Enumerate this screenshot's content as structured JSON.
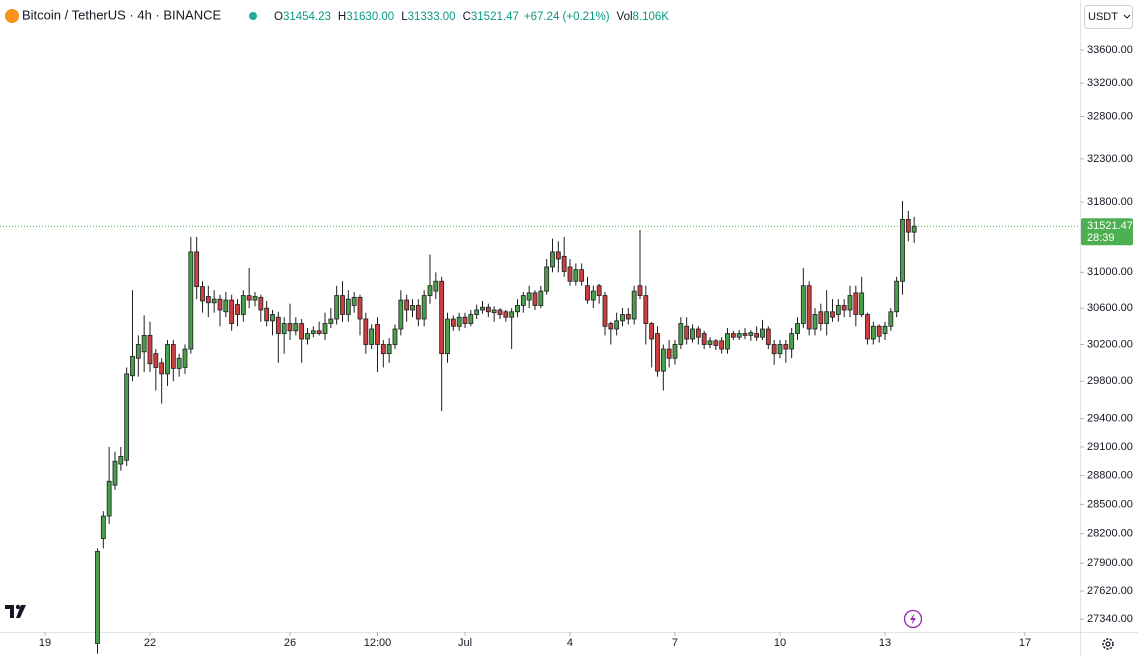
{
  "header": {
    "symbol": "Bitcoin / TetherUS · 4h · BINANCE",
    "values": [
      {
        "key": "O",
        "value": "31454.23"
      },
      {
        "key": "H",
        "value": "31630.00"
      },
      {
        "key": "L",
        "value": "31333.00"
      },
      {
        "key": "C",
        "value": "31521.47"
      },
      {
        "value": "+67.24 (+0.21%)"
      },
      {
        "key": "Vol",
        "value": "8.106K"
      }
    ]
  },
  "currency": "USDT",
  "countdown": "28:39",
  "chart_data": {
    "type": "candlestick",
    "log_scale": true,
    "grid": false,
    "up_color": "#4a9f4a",
    "down_color": "#cc3f3f",
    "wick_color": "#1e1e1e",
    "last_price_color": "#4caf50",
    "xlim": [
      "06-17 17:09",
      "07-18 13:43"
    ],
    "xticks": [
      {
        "value": "06-19 00:00",
        "label": "19"
      },
      {
        "value": "06-22 00:00",
        "label": "22"
      },
      {
        "value": "06-26 00:00",
        "label": "26"
      },
      {
        "value": "06-28 12:00",
        "label": "12:00"
      },
      {
        "value": "07-01 00:00",
        "label": "Jul"
      },
      {
        "value": "07-04 00:00",
        "label": "4"
      },
      {
        "value": "07-07 00:00",
        "label": "7"
      },
      {
        "value": "07-10 00:00",
        "label": "10"
      },
      {
        "value": "07-13 00:00",
        "label": "13"
      },
      {
        "value": "07-17 00:00",
        "label": "17"
      }
    ],
    "ylim": [
      27213,
      34214
    ],
    "yticks": [
      {
        "value": 33600,
        "label": "33600.00"
      },
      {
        "value": 33200,
        "label": "33200.00"
      },
      {
        "value": 32800,
        "label": "32800.00"
      },
      {
        "value": 32300,
        "label": "32300.00"
      },
      {
        "value": 31800,
        "label": "31800.00"
      },
      {
        "value": 31000,
        "label": "31000.00"
      },
      {
        "value": 30600,
        "label": "30600.00"
      },
      {
        "value": 30200,
        "label": "30200.00"
      },
      {
        "value": 29800,
        "label": "29800.00"
      },
      {
        "value": 29400,
        "label": "29400.00"
      },
      {
        "value": 29100,
        "label": "29100.00"
      },
      {
        "value": 28800,
        "label": "28800.00"
      },
      {
        "value": 28500,
        "label": "28500.00"
      },
      {
        "value": 28200,
        "label": "28200.00"
      },
      {
        "value": 27900,
        "label": "27900.00"
      },
      {
        "value": 27620,
        "label": "27620.00"
      },
      {
        "value": 27340,
        "label": "27340.00"
      }
    ],
    "candles": [
      [
        "06-20 12:00",
        27100,
        28050,
        27000,
        28020
      ],
      [
        "06-20 16:00",
        28150,
        28430,
        28050,
        28380
      ],
      [
        "06-20 20:00",
        28380,
        29100,
        28300,
        28740
      ],
      [
        "06-21 00:00",
        28700,
        29050,
        28650,
        28950
      ],
      [
        "06-21 04:00",
        28920,
        29100,
        28850,
        29000
      ],
      [
        "06-21 08:00",
        28960,
        29950,
        28900,
        29880
      ],
      [
        "06-21 12:00",
        29860,
        30800,
        29800,
        30070
      ],
      [
        "06-21 16:00",
        30050,
        30300,
        29850,
        30200
      ],
      [
        "06-21 20:00",
        30120,
        30520,
        29900,
        30300
      ],
      [
        "06-22 00:00",
        30300,
        30450,
        29900,
        29990
      ],
      [
        "06-22 04:00",
        30100,
        30150,
        29700,
        29950
      ],
      [
        "06-22 08:00",
        30000,
        30050,
        29560,
        29880
      ],
      [
        "06-22 12:00",
        29880,
        30250,
        29750,
        30200
      ],
      [
        "06-22 16:00",
        30200,
        30250,
        29800,
        29940
      ],
      [
        "06-22 20:00",
        29940,
        30100,
        29850,
        30050
      ],
      [
        "06-23 00:00",
        29950,
        30200,
        29880,
        30150
      ],
      [
        "06-23 04:00",
        30150,
        31400,
        30100,
        31230
      ],
      [
        "06-23 08:00",
        31230,
        31400,
        30700,
        30840
      ],
      [
        "06-23 12:00",
        30840,
        30900,
        30550,
        30680
      ],
      [
        "06-23 16:00",
        30730,
        30850,
        30500,
        30660
      ],
      [
        "06-23 20:00",
        30660,
        30800,
        30550,
        30700
      ],
      [
        "06-24 00:00",
        30700,
        30750,
        30400,
        30580
      ],
      [
        "06-24 04:00",
        30560,
        30780,
        30500,
        30690
      ],
      [
        "06-24 08:00",
        30690,
        30750,
        30350,
        30430
      ],
      [
        "06-24 12:00",
        30640,
        30700,
        30400,
        30530
      ],
      [
        "06-24 16:00",
        30530,
        30800,
        30450,
        30740
      ],
      [
        "06-24 20:00",
        30740,
        31050,
        30600,
        30690
      ],
      [
        "06-25 00:00",
        30690,
        30780,
        30620,
        30730
      ],
      [
        "06-25 04:00",
        30720,
        30750,
        30450,
        30580
      ],
      [
        "06-25 08:00",
        30600,
        30680,
        30400,
        30460
      ],
      [
        "06-25 12:00",
        30460,
        30580,
        30300,
        30530
      ],
      [
        "06-25 16:00",
        30500,
        30560,
        30000,
        30320
      ],
      [
        "06-25 20:00",
        30320,
        30500,
        30100,
        30430
      ],
      [
        "06-26 00:00",
        30430,
        30650,
        30250,
        30350
      ],
      [
        "06-26 04:00",
        30350,
        30500,
        30300,
        30430
      ],
      [
        "06-26 08:00",
        30430,
        30480,
        30000,
        30260
      ],
      [
        "06-26 12:00",
        30260,
        30380,
        30200,
        30320
      ],
      [
        "06-26 16:00",
        30320,
        30400,
        30280,
        30350
      ],
      [
        "06-26 20:00",
        30350,
        30450,
        30300,
        30320
      ],
      [
        "06-27 00:00",
        30320,
        30550,
        30250,
        30430
      ],
      [
        "06-27 04:00",
        30430,
        30600,
        30380,
        30480
      ],
      [
        "06-27 08:00",
        30480,
        30850,
        30420,
        30740
      ],
      [
        "06-27 12:00",
        30740,
        30900,
        30450,
        30530
      ],
      [
        "06-27 16:00",
        30530,
        30800,
        30450,
        30700
      ],
      [
        "06-27 20:00",
        30630,
        30780,
        30550,
        30720
      ],
      [
        "06-28 00:00",
        30720,
        30750,
        30300,
        30480
      ],
      [
        "06-28 04:00",
        30480,
        30550,
        30100,
        30200
      ],
      [
        "06-28 08:00",
        30200,
        30420,
        30150,
        30370
      ],
      [
        "06-28 12:00",
        30420,
        30500,
        29900,
        30200
      ],
      [
        "06-28 16:00",
        30200,
        30250,
        29950,
        30100
      ],
      [
        "06-28 20:00",
        30100,
        30270,
        30000,
        30200
      ],
      [
        "06-29 00:00",
        30200,
        30420,
        30150,
        30370
      ],
      [
        "06-29 04:00",
        30370,
        30800,
        30300,
        30690
      ],
      [
        "06-29 08:00",
        30690,
        30750,
        30450,
        30580
      ],
      [
        "06-29 12:00",
        30580,
        30700,
        30500,
        30630
      ],
      [
        "06-29 16:00",
        30630,
        30700,
        30400,
        30480
      ],
      [
        "06-29 20:00",
        30480,
        30800,
        30400,
        30740
      ],
      [
        "06-30 00:00",
        30740,
        31200,
        30650,
        30850
      ],
      [
        "06-30 04:00",
        30790,
        31000,
        30700,
        30900
      ],
      [
        "06-30 08:00",
        30900,
        30950,
        29480,
        30100
      ],
      [
        "06-30 12:00",
        30100,
        30550,
        30000,
        30480
      ],
      [
        "06-30 16:00",
        30480,
        30520,
        30350,
        30400
      ],
      [
        "06-30 20:00",
        30400,
        30550,
        30350,
        30500
      ],
      [
        "07-01 00:00",
        30500,
        30550,
        30380,
        30430
      ],
      [
        "07-01 04:00",
        30430,
        30580,
        30400,
        30530
      ],
      [
        "07-01 08:00",
        30530,
        30640,
        30480,
        30580
      ],
      [
        "07-01 12:00",
        30580,
        30680,
        30540,
        30610
      ],
      [
        "07-01 16:00",
        30610,
        30650,
        30500,
        30560
      ],
      [
        "07-01 20:00",
        30550,
        30620,
        30450,
        30580
      ],
      [
        "07-02 00:00",
        30580,
        30600,
        30480,
        30530
      ],
      [
        "07-02 04:00",
        30560,
        30580,
        30450,
        30500
      ],
      [
        "07-02 08:00",
        30500,
        30600,
        30150,
        30560
      ],
      [
        "07-02 12:00",
        30560,
        30700,
        30500,
        30630
      ],
      [
        "07-02 16:00",
        30630,
        30780,
        30550,
        30740
      ],
      [
        "07-02 20:00",
        30690,
        30850,
        30600,
        30770
      ],
      [
        "07-03 00:00",
        30770,
        30800,
        30580,
        30630
      ],
      [
        "07-03 04:00",
        30630,
        30850,
        30600,
        30790
      ],
      [
        "07-03 08:00",
        30790,
        31150,
        30750,
        31060
      ],
      [
        "07-03 12:00",
        31060,
        31380,
        31000,
        31230
      ],
      [
        "07-03 16:00",
        31230,
        31350,
        31000,
        31150
      ],
      [
        "07-03 20:00",
        31180,
        31400,
        30950,
        31010
      ],
      [
        "07-04 00:00",
        31060,
        31150,
        30850,
        30900
      ],
      [
        "07-04 04:00",
        30900,
        31100,
        30850,
        31030
      ],
      [
        "07-04 08:00",
        31030,
        31100,
        30850,
        30900
      ],
      [
        "07-04 12:00",
        30850,
        30950,
        30650,
        30690
      ],
      [
        "07-04 16:00",
        30690,
        30850,
        30600,
        30790
      ],
      [
        "07-04 20:00",
        30850,
        30870,
        30650,
        30740
      ],
      [
        "07-05 00:00",
        30740,
        30780,
        30300,
        30400
      ],
      [
        "07-05 04:00",
        30430,
        30450,
        30200,
        30370
      ],
      [
        "07-05 08:00",
        30370,
        30550,
        30300,
        30460
      ],
      [
        "07-05 12:00",
        30460,
        30600,
        30400,
        30530
      ],
      [
        "07-05 16:00",
        30530,
        30600,
        30420,
        30480
      ],
      [
        "07-05 20:00",
        30480,
        30850,
        30420,
        30790
      ],
      [
        "07-06 00:00",
        30850,
        31480,
        30700,
        30740
      ],
      [
        "07-06 04:00",
        30740,
        30850,
        30200,
        30430
      ],
      [
        "07-06 08:00",
        30430,
        30450,
        29950,
        30260
      ],
      [
        "07-06 12:00",
        30320,
        30400,
        29850,
        29910
      ],
      [
        "07-06 16:00",
        29910,
        30200,
        29700,
        30150
      ],
      [
        "07-06 20:00",
        30150,
        30250,
        29950,
        30050
      ],
      [
        "07-07 00:00",
        30050,
        30250,
        29980,
        30200
      ],
      [
        "07-07 04:00",
        30200,
        30500,
        30150,
        30430
      ],
      [
        "07-07 08:00",
        30400,
        30500,
        30200,
        30260
      ],
      [
        "07-07 12:00",
        30260,
        30420,
        30220,
        30370
      ],
      [
        "07-07 16:00",
        30370,
        30400,
        30200,
        30280
      ],
      [
        "07-07 20:00",
        30320,
        30350,
        30150,
        30200
      ],
      [
        "07-08 00:00",
        30200,
        30280,
        30160,
        30240
      ],
      [
        "07-08 04:00",
        30240,
        30260,
        30140,
        30190
      ],
      [
        "07-08 08:00",
        30240,
        30280,
        30100,
        30150
      ],
      [
        "07-08 12:00",
        30150,
        30380,
        30100,
        30320
      ],
      [
        "07-08 16:00",
        30320,
        30350,
        30250,
        30280
      ],
      [
        "07-08 20:00",
        30280,
        30360,
        30250,
        30320
      ],
      [
        "07-09 00:00",
        30320,
        30380,
        30260,
        30300
      ],
      [
        "07-09 04:00",
        30300,
        30360,
        30240,
        30330
      ],
      [
        "07-09 08:00",
        30320,
        30400,
        30240,
        30280
      ],
      [
        "07-09 12:00",
        30280,
        30470,
        30250,
        30370
      ],
      [
        "07-09 16:00",
        30370,
        30400,
        30150,
        30200
      ],
      [
        "07-09 20:00",
        30200,
        30250,
        29980,
        30100
      ],
      [
        "07-10 00:00",
        30100,
        30250,
        30050,
        30200
      ],
      [
        "07-10 04:00",
        30200,
        30250,
        30000,
        30150
      ],
      [
        "07-10 08:00",
        30150,
        30380,
        30050,
        30320
      ],
      [
        "07-10 12:00",
        30320,
        30500,
        30250,
        30430
      ],
      [
        "07-10 16:00",
        30430,
        31050,
        30380,
        30850
      ],
      [
        "07-10 20:00",
        30850,
        30900,
        30300,
        30370
      ],
      [
        "07-11 00:00",
        30370,
        30600,
        30300,
        30530
      ],
      [
        "07-11 04:00",
        30560,
        30650,
        30350,
        30430
      ],
      [
        "07-11 08:00",
        30430,
        30800,
        30300,
        30560
      ],
      [
        "07-11 12:00",
        30560,
        30700,
        30450,
        30500
      ],
      [
        "07-11 16:00",
        30530,
        30700,
        30450,
        30630
      ],
      [
        "07-11 20:00",
        30630,
        30700,
        30500,
        30580
      ],
      [
        "07-12 00:00",
        30580,
        30850,
        30500,
        30740
      ],
      [
        "07-12 04:00",
        30770,
        30850,
        30400,
        30530
      ],
      [
        "07-12 08:00",
        30530,
        30950,
        30500,
        30770
      ],
      [
        "07-12 12:00",
        30530,
        30550,
        30200,
        30260
      ],
      [
        "07-12 16:00",
        30260,
        30450,
        30200,
        30400
      ],
      [
        "07-12 20:00",
        30400,
        30420,
        30220,
        30290
      ],
      [
        "07-13 00:00",
        30320,
        30450,
        30250,
        30400
      ],
      [
        "07-13 04:00",
        30400,
        30600,
        30350,
        30560
      ],
      [
        "07-13 08:00",
        30560,
        30950,
        30500,
        30900
      ],
      [
        "07-13 12:00",
        30900,
        31810,
        30750,
        31600
      ],
      [
        "07-13 16:00",
        31600,
        31700,
        31350,
        31454.23
      ],
      [
        "07-13 20:00",
        31454.23,
        31630,
        31333,
        31521.47
      ]
    ]
  }
}
